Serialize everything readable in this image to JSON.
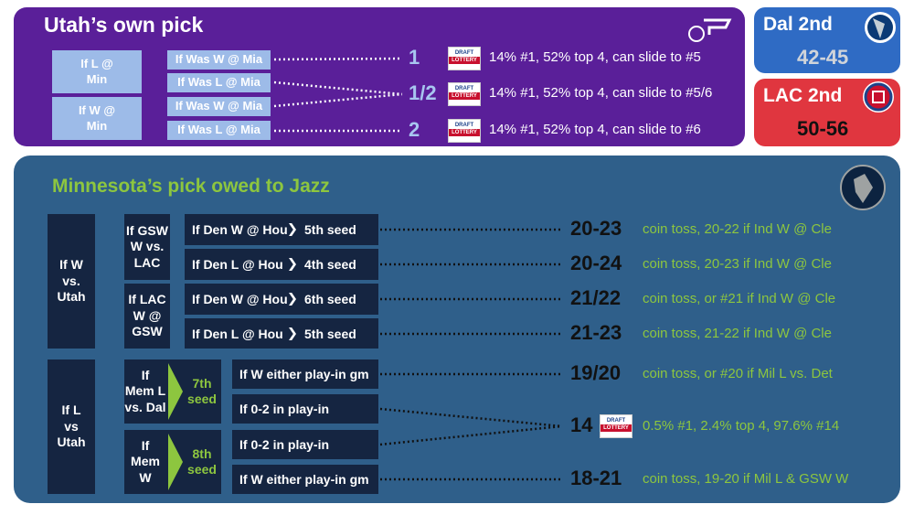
{
  "utah": {
    "title": "Utah’s own pick",
    "branches": [
      {
        "label": [
          "If L @",
          "Min"
        ]
      },
      {
        "label": [
          "If W @",
          "Min"
        ]
      }
    ],
    "rows": [
      {
        "condition": "If Was W @ Mia"
      },
      {
        "condition": "If Was L @ Mia"
      },
      {
        "condition": "If Was W @ Mia"
      },
      {
        "condition": "If Was L @ Mia"
      }
    ],
    "outcomes": [
      {
        "pick": "1",
        "note": "14% #1, 52% top 4, can slide to #5"
      },
      {
        "pick": "1/2",
        "note": "14% #1, 52% top 4, can slide to #5/6"
      },
      {
        "pick": "2",
        "note": "14% #1, 52% top 4, can slide to #6"
      }
    ]
  },
  "badge": [
    "DRAFT",
    "LOTTERY"
  ],
  "standings": [
    {
      "team": "Dal 2nd",
      "record": "42-45"
    },
    {
      "team": "LAC 2nd",
      "record": "50-56"
    }
  ],
  "minnesota": {
    "title": "Minnesota’s pick owed to Jazz",
    "groups": [
      {
        "label": [
          "If W",
          "vs.",
          "Utah"
        ],
        "subgroups": [
          {
            "label": [
              "If GSW",
              "W vs.",
              "LAC"
            ],
            "rows": [
              {
                "condition": "If Den W @ Hou",
                "seed": "5th seed"
              },
              {
                "condition": "If Den L @ Hou",
                "seed": "4th seed"
              }
            ]
          },
          {
            "label": [
              "If LAC",
              "W @",
              "GSW"
            ],
            "rows": [
              {
                "condition": "If Den W @ Hou",
                "seed": "6th seed"
              },
              {
                "condition": "If Den L @ Hou",
                "seed": "5th seed"
              }
            ]
          }
        ]
      },
      {
        "label": [
          "If L",
          "vs",
          "Utah"
        ],
        "subgroups": [
          {
            "label": [
              "If",
              "Mem L",
              "vs. Dal"
            ],
            "seed": [
              "7th",
              "seed"
            ],
            "rows": [
              {
                "condition": "If W either play-in gm"
              },
              {
                "condition": "If 0-2 in play-in"
              }
            ]
          },
          {
            "label": [
              "If",
              "Mem",
              "W"
            ],
            "seed": [
              "8th",
              "seed"
            ],
            "rows": [
              {
                "condition": "If 0-2 in play-in"
              },
              {
                "condition": "If W either play-in gm"
              }
            ]
          }
        ]
      }
    ],
    "outcomes": [
      {
        "pick": "20-23",
        "note": "coin toss, 20-22 if Ind W @ Cle"
      },
      {
        "pick": "20-24",
        "note": "coin toss, 20-23 if Ind W @ Cle"
      },
      {
        "pick": "21/22",
        "note": "coin toss, or #21 if Ind W @ Cle"
      },
      {
        "pick": "21-23",
        "note": "coin toss, 21-22 if Ind W @ Cle"
      },
      {
        "pick": "19/20",
        "note": "coin toss, or #20 if Mil L vs. Det"
      },
      {
        "pick": "14",
        "note": "0.5% #1, 2.4% top 4, 97.6% #14"
      },
      {
        "pick": "18-21",
        "note": "coin toss, 19-20 if Mil L & GSW W"
      }
    ]
  }
}
